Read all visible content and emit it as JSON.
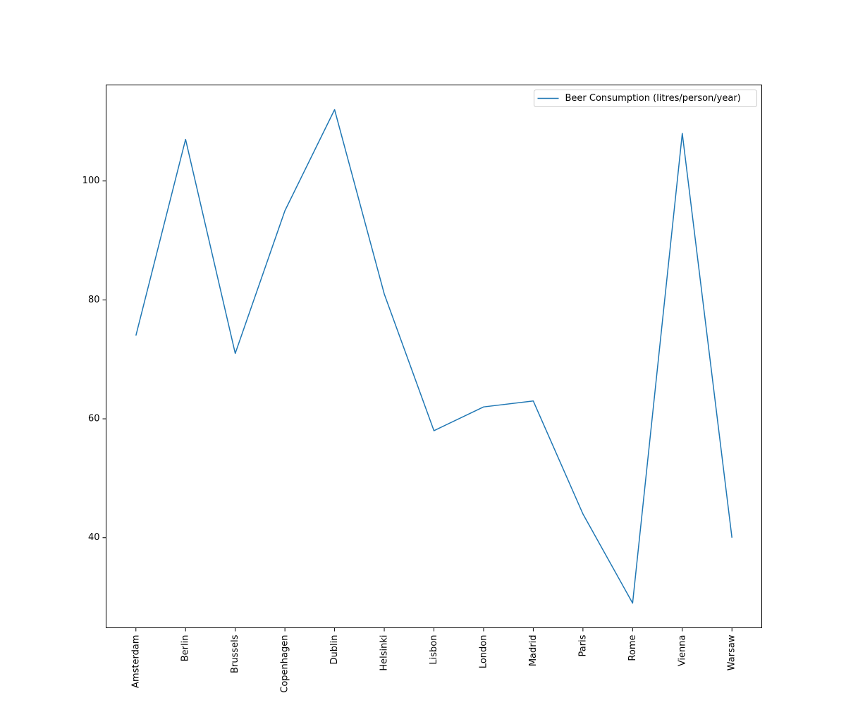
{
  "chart_data": {
    "type": "line",
    "categories": [
      "Amsterdam",
      "Berlin",
      "Brussels",
      "Copenhagen",
      "Dublin",
      "Helsinki",
      "Lisbon",
      "London",
      "Madrid",
      "Paris",
      "Rome",
      "Vienna",
      "Warsaw"
    ],
    "series": [
      {
        "name": "Beer Consumption (litres/person/year)",
        "color": "#1f77b4",
        "values": [
          74,
          107,
          71,
          95,
          112,
          81,
          58,
          62,
          63,
          44,
          29,
          108,
          40
        ]
      }
    ],
    "ylim": [
      24.85,
      116.15
    ],
    "yticks": [
      40,
      60,
      80,
      100
    ],
    "grid": false,
    "legend": "upper right"
  }
}
